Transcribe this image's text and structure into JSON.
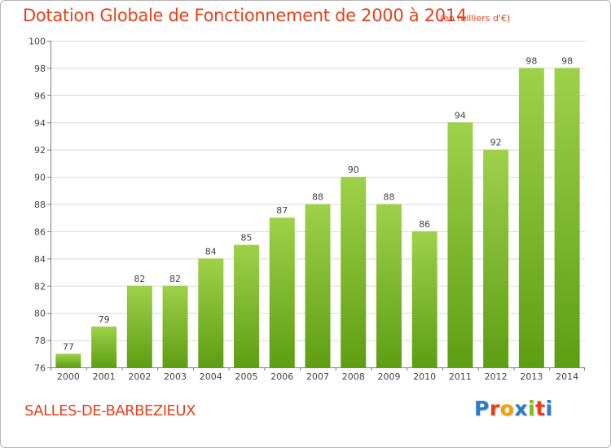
{
  "header": {
    "title": "Dotation Globale de Fonctionnement de 2000 à 2014",
    "unit": "(en milliers d'€)"
  },
  "footer": {
    "commune": "SALLES-DE-BARBEZIEUX",
    "logo": "Proxiti",
    "logo_letters": [
      "P",
      "r",
      "o",
      "x",
      "i",
      "t",
      "i"
    ],
    "logo_colors": [
      "#2a7bc9",
      "#e8401a",
      "#f4a000",
      "#2a7bc9",
      "#7dbd28",
      "#e8401a",
      "#2a7bc9"
    ]
  },
  "colors": {
    "title": "#e8401a",
    "bar_top": "#9ed14a",
    "bar_bottom": "#5e9e12",
    "grid": "#d9d9d9",
    "axis": "#7f7f7f",
    "label": "#444444"
  },
  "chart_data": {
    "type": "bar",
    "title": "Dotation Globale de Fonctionnement de 2000 à 2014",
    "subtitle": "(en milliers d'€)",
    "xlabel": "",
    "ylabel": "",
    "categories": [
      "2000",
      "2001",
      "2002",
      "2003",
      "2004",
      "2005",
      "2006",
      "2007",
      "2008",
      "2009",
      "2010",
      "2011",
      "2012",
      "2013",
      "2014"
    ],
    "values": [
      77,
      79,
      82,
      82,
      84,
      85,
      87,
      88,
      90,
      88,
      86,
      94,
      92,
      98,
      98
    ],
    "ylim": [
      76,
      100
    ],
    "yticks": [
      76,
      78,
      80,
      82,
      84,
      86,
      88,
      90,
      92,
      94,
      96,
      98,
      100
    ],
    "grid": true,
    "data_labels": true
  }
}
